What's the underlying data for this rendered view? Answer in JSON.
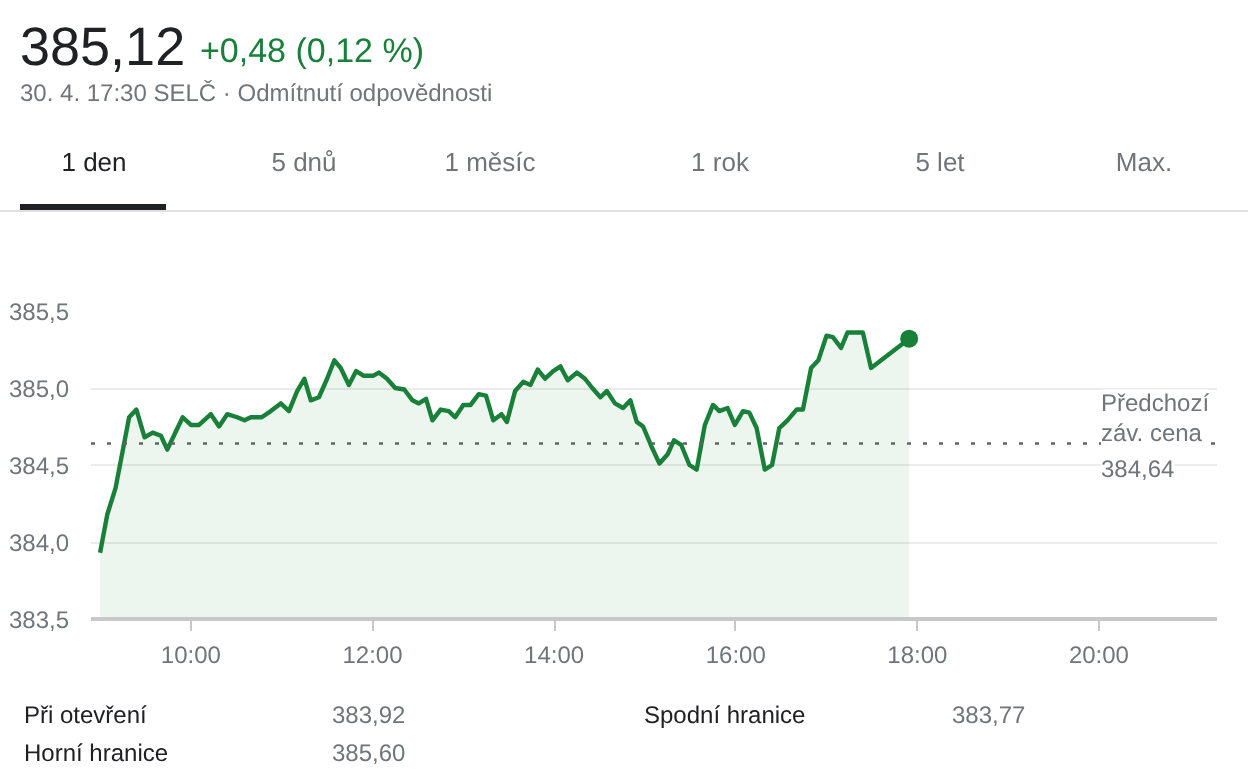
{
  "chart_data": {
    "type": "area",
    "title": "385,12",
    "subtitle": "+0,48 (0,12 %)",
    "annotations": [
      "30. 4. 17:30 SELČ · Odmítnutí odpovědnosti",
      "1 den",
      "5 dnů",
      "1 měsíc",
      "1 rok",
      "5 let",
      "Max.",
      "Při otevření",
      "383,92",
      "Horní hranice",
      "385,60",
      "Spodní hranice",
      "383,77"
    ],
    "xlim": [
      8.9,
      21.3
    ],
    "ylim": [
      383.5,
      385.5
    ],
    "xticks": [
      {
        "value": 10,
        "label": "10:00"
      },
      {
        "value": 12,
        "label": "12:00"
      },
      {
        "value": 14,
        "label": "14:00"
      },
      {
        "value": 16,
        "label": "16:00"
      },
      {
        "value": 18,
        "label": "18:00"
      },
      {
        "value": 20,
        "label": "20:00"
      }
    ],
    "yticks": [
      {
        "value": 383.5,
        "label": "383,5"
      },
      {
        "value": 384.0,
        "label": "384,0"
      },
      {
        "value": 384.5,
        "label": "384,5"
      },
      {
        "value": 385.0,
        "label": "385,0"
      },
      {
        "value": 385.5,
        "label": "385,5"
      }
    ],
    "grid": "y",
    "ref_lines": [
      {
        "axis": "y",
        "value": 384.64,
        "label": "Předchozí\nzáv. cena\n384,64",
        "color": "#5f6368",
        "line_style": "dotted"
      }
    ],
    "series": [
      {
        "color": "#188038",
        "x": [
          9.0,
          9.08,
          9.17,
          9.32,
          9.4,
          9.49,
          9.58,
          9.67,
          9.74,
          9.82,
          9.91,
          10.0,
          10.09,
          10.22,
          10.31,
          10.4,
          10.51,
          10.59,
          10.66,
          10.78,
          10.88,
          10.99,
          11.08,
          11.17,
          11.25,
          11.32,
          11.41,
          11.5,
          11.58,
          11.65,
          11.74,
          11.82,
          11.9,
          12.01,
          12.07,
          12.16,
          12.25,
          12.35,
          12.44,
          12.51,
          12.59,
          12.66,
          12.75,
          12.84,
          12.91,
          13.0,
          13.08,
          13.17,
          13.25,
          13.33,
          13.42,
          13.48,
          13.57,
          13.66,
          13.74,
          13.82,
          13.9,
          13.99,
          14.07,
          14.15,
          14.25,
          14.34,
          14.42,
          14.51,
          14.58,
          14.67,
          14.76,
          14.84,
          14.91,
          14.98,
          15.08,
          15.16,
          15.25,
          15.32,
          15.4,
          15.49,
          15.57,
          15.66,
          15.75,
          15.82,
          15.91,
          15.99,
          16.08,
          16.15,
          16.23,
          16.32,
          16.4,
          16.48,
          16.57,
          16.67,
          16.74,
          16.83,
          16.91,
          17.0,
          17.07,
          17.16,
          17.23,
          17.4,
          17.49,
          17.91
        ],
        "values": [
          383.93,
          384.18,
          384.35,
          384.81,
          384.86,
          384.68,
          384.71,
          384.69,
          384.6,
          384.7,
          384.81,
          384.76,
          384.76,
          384.83,
          384.75,
          384.83,
          384.81,
          384.79,
          384.81,
          384.81,
          384.85,
          384.9,
          384.85,
          384.98,
          385.06,
          384.92,
          384.94,
          385.06,
          385.18,
          385.13,
          385.02,
          385.11,
          385.08,
          385.08,
          385.1,
          385.06,
          385.0,
          384.99,
          384.92,
          384.9,
          384.93,
          384.79,
          384.86,
          384.85,
          384.81,
          384.89,
          384.89,
          384.96,
          384.95,
          384.79,
          384.83,
          384.78,
          384.98,
          385.04,
          385.02,
          385.12,
          385.06,
          385.11,
          385.14,
          385.05,
          385.1,
          385.06,
          385.0,
          384.94,
          384.98,
          384.9,
          384.87,
          384.92,
          384.78,
          384.75,
          384.61,
          384.51,
          384.57,
          384.66,
          384.63,
          384.5,
          384.47,
          384.76,
          384.89,
          384.85,
          384.87,
          384.76,
          384.85,
          384.84,
          384.74,
          384.47,
          384.5,
          384.74,
          384.79,
          384.86,
          384.86,
          385.13,
          385.18,
          385.34,
          385.33,
          385.26,
          385.36,
          385.36,
          385.13,
          385.32
        ]
      }
    ]
  }
}
